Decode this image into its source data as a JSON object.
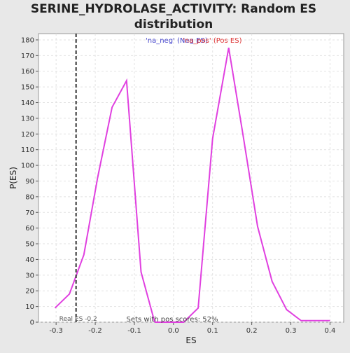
{
  "chart_data": {
    "type": "line",
    "title_line1": "SERINE_HYDROLASE_ACTIVITY: Random ES",
    "title_line2": "distribution",
    "xlabel": "ES",
    "ylabel": "P(ES)",
    "xlim": [
      -0.345,
      0.435
    ],
    "ylim": [
      0,
      184
    ],
    "x_ticks": [
      -0.3,
      -0.2,
      -0.1,
      0.0,
      0.1,
      0.2,
      0.3,
      0.4
    ],
    "x_tick_labels": [
      "-0.3",
      "-0.2",
      "-0.1",
      "0.0",
      "0.1",
      "0.2",
      "0.3",
      "0.4"
    ],
    "y_ticks": [
      0,
      10,
      20,
      30,
      40,
      50,
      60,
      70,
      80,
      90,
      100,
      110,
      120,
      130,
      140,
      150,
      160,
      170,
      180
    ],
    "grid": true,
    "legend_position": "top-center",
    "series": [
      {
        "name": "'na_neg' (Neg ES)",
        "color": "#e040e0",
        "label_color": "#4444cc",
        "x": [
          -0.303,
          -0.266,
          -0.229,
          -0.194,
          -0.157,
          -0.12,
          -0.083,
          -0.048
        ],
        "y": [
          9,
          18,
          43,
          92,
          137,
          154,
          32,
          0
        ]
      },
      {
        "name": "'na_pos' (Pos ES)",
        "color": "#e040e0",
        "label_color": "#dd3333",
        "x": [
          -0.048,
          -0.011,
          0.026,
          0.063,
          0.1,
          0.141,
          0.178,
          0.215,
          0.252,
          0.289,
          0.326,
          0.363,
          0.4
        ],
        "y": [
          0,
          0,
          0,
          9,
          117,
          175,
          119,
          61,
          26,
          8,
          1,
          1,
          1
        ]
      }
    ],
    "real_es": {
      "x": -0.249,
      "label": "Real ES -0.2"
    },
    "annotation": "Sets with pos scores: 52%"
  }
}
